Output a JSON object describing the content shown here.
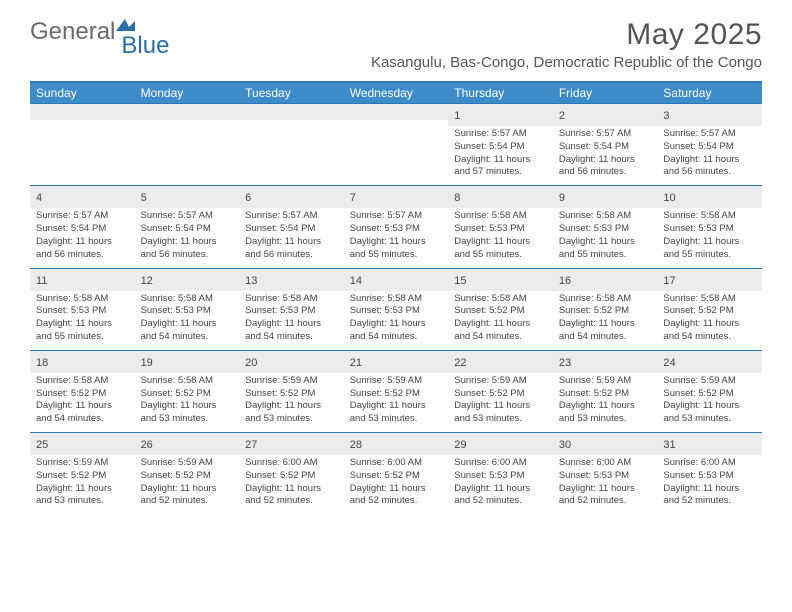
{
  "logo": {
    "text1": "General",
    "text2": "Blue"
  },
  "title": "May 2025",
  "location": "Kasangulu, Bas-Congo, Democratic Republic of the Congo",
  "colors": {
    "header_bg": "#3d8bc8",
    "border": "#2a78b8",
    "daynum_bg": "#ececec",
    "text": "#444444",
    "logo_grey": "#6a6a6a",
    "logo_blue": "#2a6ea8"
  },
  "weekdays": [
    "Sunday",
    "Monday",
    "Tuesday",
    "Wednesday",
    "Thursday",
    "Friday",
    "Saturday"
  ],
  "weeks": [
    [
      {
        "empty": true
      },
      {
        "empty": true
      },
      {
        "empty": true
      },
      {
        "empty": true
      },
      {
        "n": "1",
        "sr": "5:57 AM",
        "ss": "5:54 PM",
        "dl": "11 hours and 57 minutes."
      },
      {
        "n": "2",
        "sr": "5:57 AM",
        "ss": "5:54 PM",
        "dl": "11 hours and 56 minutes."
      },
      {
        "n": "3",
        "sr": "5:57 AM",
        "ss": "5:54 PM",
        "dl": "11 hours and 56 minutes."
      }
    ],
    [
      {
        "n": "4",
        "sr": "5:57 AM",
        "ss": "5:54 PM",
        "dl": "11 hours and 56 minutes."
      },
      {
        "n": "5",
        "sr": "5:57 AM",
        "ss": "5:54 PM",
        "dl": "11 hours and 56 minutes."
      },
      {
        "n": "6",
        "sr": "5:57 AM",
        "ss": "5:54 PM",
        "dl": "11 hours and 56 minutes."
      },
      {
        "n": "7",
        "sr": "5:57 AM",
        "ss": "5:53 PM",
        "dl": "11 hours and 55 minutes."
      },
      {
        "n": "8",
        "sr": "5:58 AM",
        "ss": "5:53 PM",
        "dl": "11 hours and 55 minutes."
      },
      {
        "n": "9",
        "sr": "5:58 AM",
        "ss": "5:53 PM",
        "dl": "11 hours and 55 minutes."
      },
      {
        "n": "10",
        "sr": "5:58 AM",
        "ss": "5:53 PM",
        "dl": "11 hours and 55 minutes."
      }
    ],
    [
      {
        "n": "11",
        "sr": "5:58 AM",
        "ss": "5:53 PM",
        "dl": "11 hours and 55 minutes."
      },
      {
        "n": "12",
        "sr": "5:58 AM",
        "ss": "5:53 PM",
        "dl": "11 hours and 54 minutes."
      },
      {
        "n": "13",
        "sr": "5:58 AM",
        "ss": "5:53 PM",
        "dl": "11 hours and 54 minutes."
      },
      {
        "n": "14",
        "sr": "5:58 AM",
        "ss": "5:53 PM",
        "dl": "11 hours and 54 minutes."
      },
      {
        "n": "15",
        "sr": "5:58 AM",
        "ss": "5:52 PM",
        "dl": "11 hours and 54 minutes."
      },
      {
        "n": "16",
        "sr": "5:58 AM",
        "ss": "5:52 PM",
        "dl": "11 hours and 54 minutes."
      },
      {
        "n": "17",
        "sr": "5:58 AM",
        "ss": "5:52 PM",
        "dl": "11 hours and 54 minutes."
      }
    ],
    [
      {
        "n": "18",
        "sr": "5:58 AM",
        "ss": "5:52 PM",
        "dl": "11 hours and 54 minutes."
      },
      {
        "n": "19",
        "sr": "5:58 AM",
        "ss": "5:52 PM",
        "dl": "11 hours and 53 minutes."
      },
      {
        "n": "20",
        "sr": "5:59 AM",
        "ss": "5:52 PM",
        "dl": "11 hours and 53 minutes."
      },
      {
        "n": "21",
        "sr": "5:59 AM",
        "ss": "5:52 PM",
        "dl": "11 hours and 53 minutes."
      },
      {
        "n": "22",
        "sr": "5:59 AM",
        "ss": "5:52 PM",
        "dl": "11 hours and 53 minutes."
      },
      {
        "n": "23",
        "sr": "5:59 AM",
        "ss": "5:52 PM",
        "dl": "11 hours and 53 minutes."
      },
      {
        "n": "24",
        "sr": "5:59 AM",
        "ss": "5:52 PM",
        "dl": "11 hours and 53 minutes."
      }
    ],
    [
      {
        "n": "25",
        "sr": "5:59 AM",
        "ss": "5:52 PM",
        "dl": "11 hours and 53 minutes."
      },
      {
        "n": "26",
        "sr": "5:59 AM",
        "ss": "5:52 PM",
        "dl": "11 hours and 52 minutes."
      },
      {
        "n": "27",
        "sr": "6:00 AM",
        "ss": "5:52 PM",
        "dl": "11 hours and 52 minutes."
      },
      {
        "n": "28",
        "sr": "6:00 AM",
        "ss": "5:52 PM",
        "dl": "11 hours and 52 minutes."
      },
      {
        "n": "29",
        "sr": "6:00 AM",
        "ss": "5:53 PM",
        "dl": "11 hours and 52 minutes."
      },
      {
        "n": "30",
        "sr": "6:00 AM",
        "ss": "5:53 PM",
        "dl": "11 hours and 52 minutes."
      },
      {
        "n": "31",
        "sr": "6:00 AM",
        "ss": "5:53 PM",
        "dl": "11 hours and 52 minutes."
      }
    ]
  ],
  "labels": {
    "sunrise": "Sunrise: ",
    "sunset": "Sunset: ",
    "daylight": "Daylight: "
  }
}
